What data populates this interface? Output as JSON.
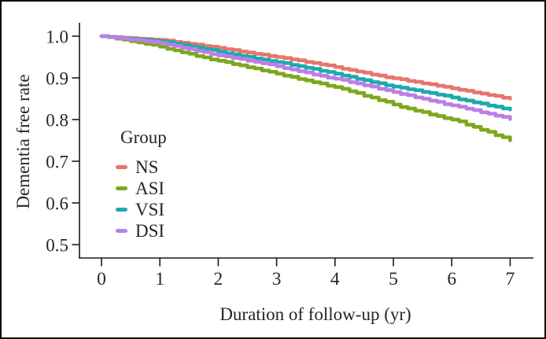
{
  "figure": {
    "background": "#ffffff",
    "border_color": "#0a0a0a",
    "text_color": "#24262e",
    "axis_color": "#1a1a1a"
  },
  "chart_data": {
    "type": "line",
    "curve_style": "kaplan-meier-step",
    "title": "",
    "xlabel": "Duration of follow-up (yr)",
    "ylabel": "Dementia free rate",
    "x": [
      0,
      1,
      2,
      3,
      4,
      5,
      6,
      7
    ],
    "xtick_labels": [
      "0",
      "1",
      "2",
      "3",
      "4",
      "5",
      "6",
      "7"
    ],
    "ytick_values": [
      1.0,
      0.9,
      0.8,
      0.7,
      0.6,
      0.5
    ],
    "ytick_labels": [
      "1.0",
      "0.9",
      "0.8",
      "0.7",
      "0.6",
      "0.5"
    ],
    "xlim": [
      -0.4,
      7.4
    ],
    "ylim": [
      0.47,
      1.03
    ],
    "grid": false,
    "legend_title": "Group",
    "legend_position": "inside-left",
    "series": [
      {
        "name": "NS",
        "color": "#e8756b",
        "values": [
          1.0,
          0.991,
          0.972,
          0.95,
          0.926,
          0.899,
          0.875,
          0.85
        ]
      },
      {
        "name": "ASI",
        "color": "#7da81d",
        "values": [
          1.0,
          0.975,
          0.941,
          0.91,
          0.878,
          0.836,
          0.8,
          0.75
        ]
      },
      {
        "name": "VSI",
        "color": "#1caaae",
        "values": [
          1.0,
          0.988,
          0.963,
          0.938,
          0.91,
          0.879,
          0.853,
          0.824
        ]
      },
      {
        "name": "DSI",
        "color": "#bc7ee6",
        "values": [
          1.0,
          0.984,
          0.954,
          0.928,
          0.898,
          0.866,
          0.834,
          0.801
        ]
      }
    ]
  }
}
